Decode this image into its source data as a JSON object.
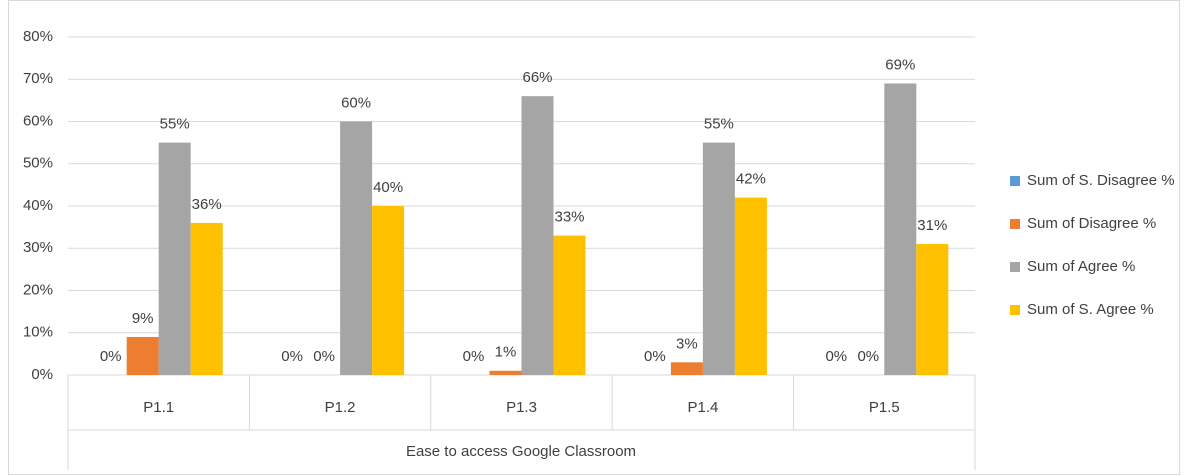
{
  "chart_data": {
    "type": "bar",
    "x_label": "Ease to access Google Classroom",
    "categories": [
      "P1.1",
      "P1.2",
      "P1.3",
      "P1.4",
      "P1.5"
    ],
    "series": [
      {
        "name": "Sum of S. Disagree %",
        "color": "#5b9bd5",
        "values": [
          0,
          0,
          0,
          0,
          0
        ],
        "value_labels": [
          "0%",
          "0%",
          "0%",
          "0%",
          "0%"
        ]
      },
      {
        "name": "Sum of Disagree %",
        "color": "#ed7d31",
        "values": [
          9,
          0,
          1,
          3,
          0
        ],
        "value_labels": [
          "9%",
          "0%",
          "1%",
          "3%",
          "0%"
        ]
      },
      {
        "name": "Sum of Agree %",
        "color": "#a5a5a5",
        "values": [
          55,
          60,
          66,
          55,
          69
        ],
        "value_labels": [
          "55%",
          "60%",
          "66%",
          "55%",
          "69%"
        ]
      },
      {
        "name": "Sum of S. Agree %",
        "color": "#ffc000",
        "values": [
          36,
          40,
          33,
          42,
          31
        ],
        "value_labels": [
          "36%",
          "40%",
          "33%",
          "42%",
          "31%"
        ]
      }
    ],
    "ylim": [
      0,
      80
    ],
    "yticks": [
      {
        "value": 0,
        "label": "0%"
      },
      {
        "value": 10,
        "label": "10%"
      },
      {
        "value": 20,
        "label": "20%"
      },
      {
        "value": 30,
        "label": "30%"
      },
      {
        "value": 40,
        "label": "40%"
      },
      {
        "value": 50,
        "label": "50%"
      },
      {
        "value": 60,
        "label": "60%"
      },
      {
        "value": 70,
        "label": "70%"
      },
      {
        "value": 80,
        "label": "80%"
      }
    ],
    "grid": true,
    "legend": "right"
  }
}
